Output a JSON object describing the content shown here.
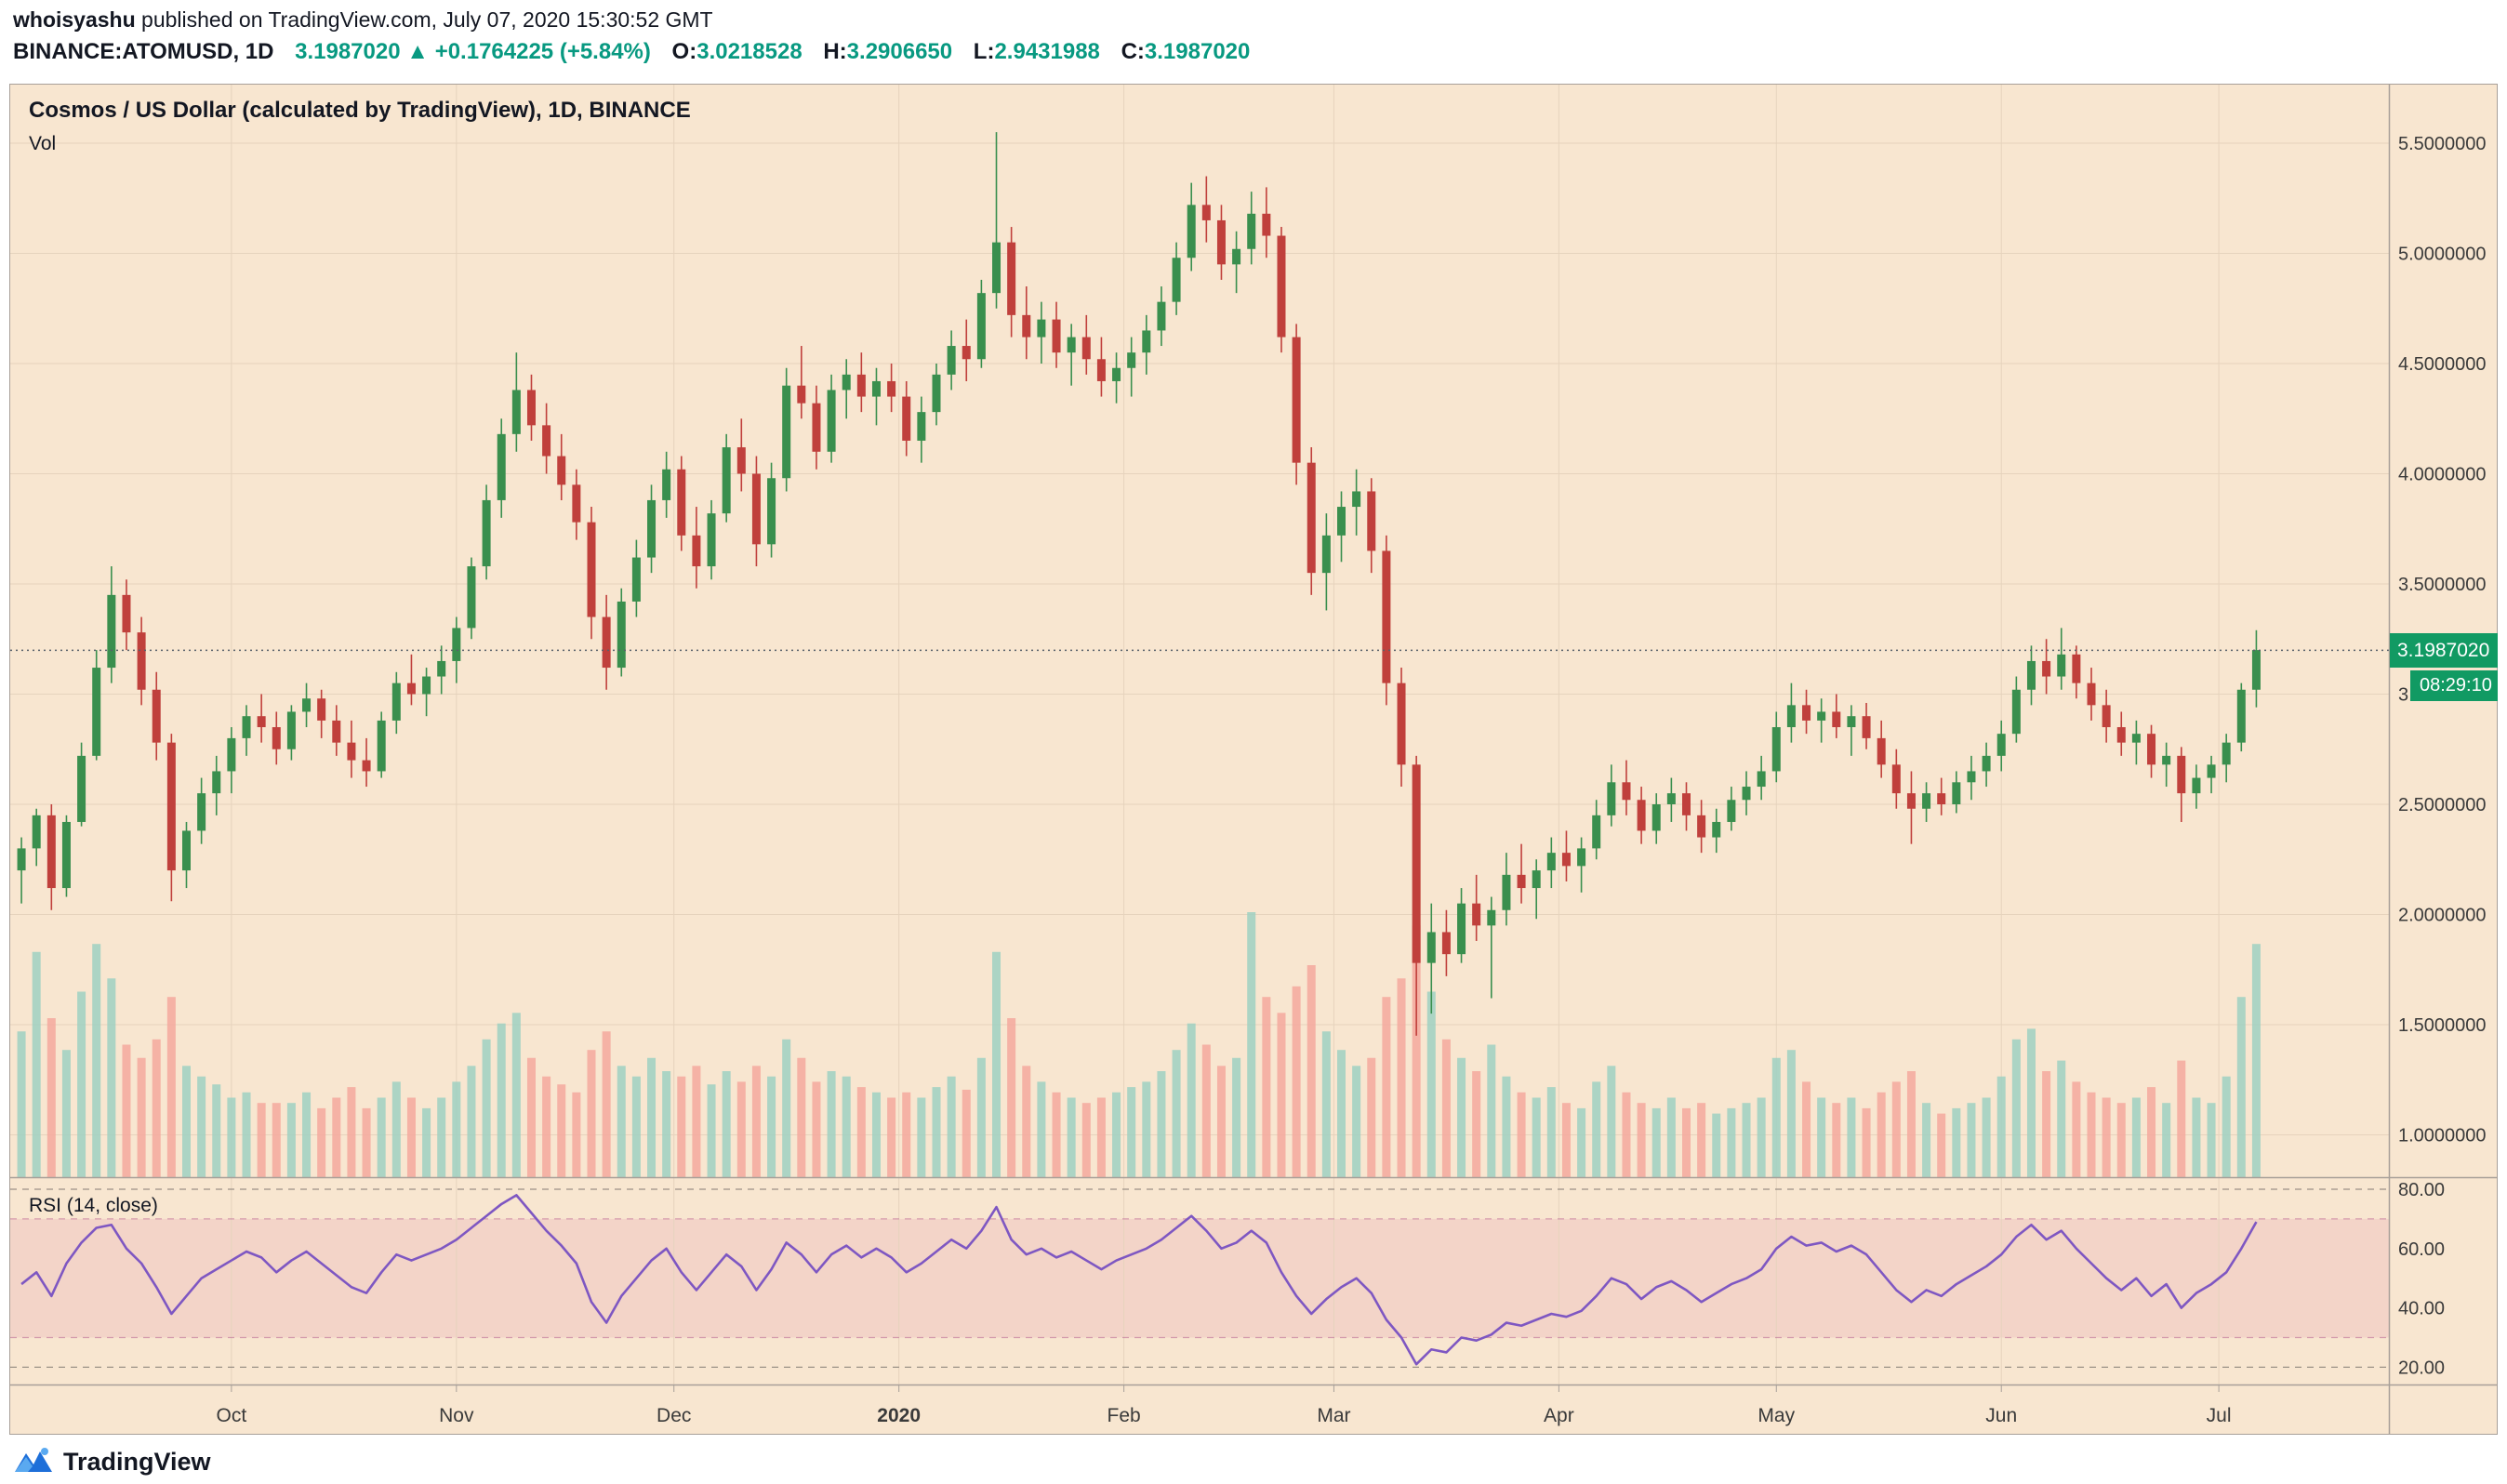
{
  "header": {
    "author": "whoisyashu",
    "byline": " published on TradingView.com, July 07, 2020 15:30:52 GMT"
  },
  "symbol_bar": {
    "symbol": "BINANCE:ATOMUSD, 1D",
    "last": "3.1987020",
    "arrow": "▲",
    "change": "+0.1764225 (+5.84%)",
    "o_label": "O:",
    "o": "3.0218528",
    "h_label": "H:",
    "h": "3.2906650",
    "l_label": "L:",
    "l": "2.9431988",
    "c_label": "C:",
    "c": "3.1987020"
  },
  "main": {
    "title": "Cosmos / US Dollar (calculated by TradingView), 1D, BINANCE",
    "vol_label": "Vol"
  },
  "rsi_pane": {
    "label": "RSI (14, close)"
  },
  "tags": {
    "price": "3.1987020",
    "countdown": "08:29:10"
  },
  "footer": {
    "brand": "TradingView"
  },
  "colors": {
    "bg": "#f8e6d0",
    "up": "#3a8f4e",
    "down": "#c0403c",
    "vol_up": "#9fd0c2",
    "vol_down": "#f4a89e",
    "rsi_line": "#7e57c2",
    "rsi_band_fill": "rgba(214,84,150,0.12)",
    "band_border": "rgba(190,110,150,0.6)",
    "grid": "#e6d3bd",
    "dashed": "#9b9186",
    "axis_text": "#3a3a3a",
    "separator": "#a8a099",
    "price_line": "#57606a",
    "tag_bg": "#119a63",
    "accent_teal": "#089981"
  },
  "chart_data": {
    "type": "candlestick+volume+rsi",
    "title": "Cosmos / US Dollar (calculated by TradingView), 1D, BINANCE",
    "symbol": "BINANCE:ATOMUSD",
    "interval": "1D",
    "current_price": 3.198702,
    "countdown": "08:29:10",
    "price_ticks": [
      5.5,
      5.0,
      4.5,
      4.0,
      3.5,
      3.0,
      2.5,
      2.0,
      1.5,
      1.0
    ],
    "rsi_ticks": [
      80,
      60,
      40,
      20
    ],
    "rsi_band": [
      30,
      70
    ],
    "x_ticks": [
      {
        "bar": 14,
        "label": "Oct",
        "bold": false
      },
      {
        "bar": 29,
        "label": "Nov",
        "bold": false
      },
      {
        "bar": 43.5,
        "label": "Dec",
        "bold": false
      },
      {
        "bar": 58.5,
        "label": "2020",
        "bold": true
      },
      {
        "bar": 73.5,
        "label": "Feb",
        "bold": false
      },
      {
        "bar": 87.5,
        "label": "Mar",
        "bold": false
      },
      {
        "bar": 102.5,
        "label": "Apr",
        "bold": false
      },
      {
        "bar": 117,
        "label": "May",
        "bold": false
      },
      {
        "bar": 132,
        "label": "Jun",
        "bold": false
      },
      {
        "bar": 146.5,
        "label": "Jul",
        "bold": false
      }
    ],
    "ohlc": [
      [
        2.2,
        2.35,
        2.05,
        2.3
      ],
      [
        2.3,
        2.48,
        2.22,
        2.45
      ],
      [
        2.45,
        2.5,
        2.02,
        2.12
      ],
      [
        2.12,
        2.45,
        2.08,
        2.42
      ],
      [
        2.42,
        2.78,
        2.4,
        2.72
      ],
      [
        2.72,
        3.2,
        2.7,
        3.12
      ],
      [
        3.12,
        3.58,
        3.05,
        3.45
      ],
      [
        3.45,
        3.52,
        3.2,
        3.28
      ],
      [
        3.28,
        3.35,
        2.95,
        3.02
      ],
      [
        3.02,
        3.1,
        2.7,
        2.78
      ],
      [
        2.78,
        2.82,
        2.06,
        2.2
      ],
      [
        2.2,
        2.42,
        2.12,
        2.38
      ],
      [
        2.38,
        2.62,
        2.32,
        2.55
      ],
      [
        2.55,
        2.72,
        2.45,
        2.65
      ],
      [
        2.65,
        2.85,
        2.55,
        2.8
      ],
      [
        2.8,
        2.95,
        2.72,
        2.9
      ],
      [
        2.9,
        3.0,
        2.78,
        2.85
      ],
      [
        2.85,
        2.92,
        2.68,
        2.75
      ],
      [
        2.75,
        2.95,
        2.7,
        2.92
      ],
      [
        2.92,
        3.05,
        2.85,
        2.98
      ],
      [
        2.98,
        3.02,
        2.8,
        2.88
      ],
      [
        2.88,
        2.95,
        2.72,
        2.78
      ],
      [
        2.78,
        2.88,
        2.62,
        2.7
      ],
      [
        2.7,
        2.8,
        2.58,
        2.65
      ],
      [
        2.65,
        2.92,
        2.62,
        2.88
      ],
      [
        2.88,
        3.1,
        2.82,
        3.05
      ],
      [
        3.05,
        3.18,
        2.95,
        3.0
      ],
      [
        3.0,
        3.12,
        2.9,
        3.08
      ],
      [
        3.08,
        3.22,
        3.0,
        3.15
      ],
      [
        3.15,
        3.35,
        3.05,
        3.3
      ],
      [
        3.3,
        3.62,
        3.25,
        3.58
      ],
      [
        3.58,
        3.95,
        3.52,
        3.88
      ],
      [
        3.88,
        4.25,
        3.8,
        4.18
      ],
      [
        4.18,
        4.55,
        4.1,
        4.38
      ],
      [
        4.38,
        4.45,
        4.15,
        4.22
      ],
      [
        4.22,
        4.32,
        4.0,
        4.08
      ],
      [
        4.08,
        4.18,
        3.88,
        3.95
      ],
      [
        3.95,
        4.02,
        3.7,
        3.78
      ],
      [
        3.78,
        3.85,
        3.25,
        3.35
      ],
      [
        3.35,
        3.45,
        3.02,
        3.12
      ],
      [
        3.12,
        3.48,
        3.08,
        3.42
      ],
      [
        3.42,
        3.7,
        3.35,
        3.62
      ],
      [
        3.62,
        3.95,
        3.55,
        3.88
      ],
      [
        3.88,
        4.1,
        3.8,
        4.02
      ],
      [
        4.02,
        4.08,
        3.65,
        3.72
      ],
      [
        3.72,
        3.85,
        3.48,
        3.58
      ],
      [
        3.58,
        3.88,
        3.52,
        3.82
      ],
      [
        3.82,
        4.18,
        3.78,
        4.12
      ],
      [
        4.12,
        4.25,
        3.92,
        4.0
      ],
      [
        4.0,
        4.08,
        3.58,
        3.68
      ],
      [
        3.68,
        4.05,
        3.62,
        3.98
      ],
      [
        3.98,
        4.48,
        3.92,
        4.4
      ],
      [
        4.4,
        4.58,
        4.25,
        4.32
      ],
      [
        4.32,
        4.4,
        4.02,
        4.1
      ],
      [
        4.1,
        4.45,
        4.05,
        4.38
      ],
      [
        4.38,
        4.52,
        4.25,
        4.45
      ],
      [
        4.45,
        4.55,
        4.28,
        4.35
      ],
      [
        4.35,
        4.48,
        4.22,
        4.42
      ],
      [
        4.42,
        4.5,
        4.28,
        4.35
      ],
      [
        4.35,
        4.42,
        4.08,
        4.15
      ],
      [
        4.15,
        4.35,
        4.05,
        4.28
      ],
      [
        4.28,
        4.5,
        4.22,
        4.45
      ],
      [
        4.45,
        4.65,
        4.38,
        4.58
      ],
      [
        4.58,
        4.7,
        4.42,
        4.52
      ],
      [
        4.52,
        4.88,
        4.48,
        4.82
      ],
      [
        4.82,
        5.55,
        4.75,
        5.05
      ],
      [
        5.05,
        5.12,
        4.62,
        4.72
      ],
      [
        4.72,
        4.85,
        4.52,
        4.62
      ],
      [
        4.62,
        4.78,
        4.5,
        4.7
      ],
      [
        4.7,
        4.78,
        4.48,
        4.55
      ],
      [
        4.55,
        4.68,
        4.4,
        4.62
      ],
      [
        4.62,
        4.72,
        4.45,
        4.52
      ],
      [
        4.52,
        4.62,
        4.35,
        4.42
      ],
      [
        4.42,
        4.55,
        4.32,
        4.48
      ],
      [
        4.48,
        4.62,
        4.35,
        4.55
      ],
      [
        4.55,
        4.72,
        4.45,
        4.65
      ],
      [
        4.65,
        4.85,
        4.58,
        4.78
      ],
      [
        4.78,
        5.05,
        4.72,
        4.98
      ],
      [
        4.98,
        5.32,
        4.92,
        5.22
      ],
      [
        5.22,
        5.35,
        5.05,
        5.15
      ],
      [
        5.15,
        5.22,
        4.88,
        4.95
      ],
      [
        4.95,
        5.1,
        4.82,
        5.02
      ],
      [
        5.02,
        5.28,
        4.95,
        5.18
      ],
      [
        5.18,
        5.3,
        4.98,
        5.08
      ],
      [
        5.08,
        5.12,
        4.55,
        4.62
      ],
      [
        4.62,
        4.68,
        3.95,
        4.05
      ],
      [
        4.05,
        4.12,
        3.45,
        3.55
      ],
      [
        3.55,
        3.82,
        3.38,
        3.72
      ],
      [
        3.72,
        3.92,
        3.6,
        3.85
      ],
      [
        3.85,
        4.02,
        3.72,
        3.92
      ],
      [
        3.92,
        3.98,
        3.55,
        3.65
      ],
      [
        3.65,
        3.72,
        2.95,
        3.05
      ],
      [
        3.05,
        3.12,
        2.58,
        2.68
      ],
      [
        2.68,
        2.72,
        1.45,
        1.78
      ],
      [
        1.78,
        2.05,
        1.55,
        1.92
      ],
      [
        1.92,
        2.02,
        1.72,
        1.82
      ],
      [
        1.82,
        2.12,
        1.78,
        2.05
      ],
      [
        2.05,
        2.18,
        1.88,
        1.95
      ],
      [
        1.95,
        2.08,
        1.62,
        2.02
      ],
      [
        2.02,
        2.28,
        1.95,
        2.18
      ],
      [
        2.18,
        2.32,
        2.05,
        2.12
      ],
      [
        2.12,
        2.25,
        1.98,
        2.2
      ],
      [
        2.2,
        2.35,
        2.12,
        2.28
      ],
      [
        2.28,
        2.38,
        2.15,
        2.22
      ],
      [
        2.22,
        2.35,
        2.1,
        2.3
      ],
      [
        2.3,
        2.52,
        2.25,
        2.45
      ],
      [
        2.45,
        2.68,
        2.4,
        2.6
      ],
      [
        2.6,
        2.7,
        2.45,
        2.52
      ],
      [
        2.52,
        2.58,
        2.32,
        2.38
      ],
      [
        2.38,
        2.55,
        2.32,
        2.5
      ],
      [
        2.5,
        2.62,
        2.42,
        2.55
      ],
      [
        2.55,
        2.6,
        2.38,
        2.45
      ],
      [
        2.45,
        2.52,
        2.28,
        2.35
      ],
      [
        2.35,
        2.48,
        2.28,
        2.42
      ],
      [
        2.42,
        2.58,
        2.38,
        2.52
      ],
      [
        2.52,
        2.65,
        2.45,
        2.58
      ],
      [
        2.58,
        2.72,
        2.52,
        2.65
      ],
      [
        2.65,
        2.92,
        2.6,
        2.85
      ],
      [
        2.85,
        3.05,
        2.78,
        2.95
      ],
      [
        2.95,
        3.02,
        2.82,
        2.88
      ],
      [
        2.88,
        2.98,
        2.78,
        2.92
      ],
      [
        2.92,
        3.0,
        2.8,
        2.85
      ],
      [
        2.85,
        2.95,
        2.72,
        2.9
      ],
      [
        2.9,
        2.96,
        2.75,
        2.8
      ],
      [
        2.8,
        2.88,
        2.62,
        2.68
      ],
      [
        2.68,
        2.75,
        2.48,
        2.55
      ],
      [
        2.55,
        2.65,
        2.32,
        2.48
      ],
      [
        2.48,
        2.6,
        2.42,
        2.55
      ],
      [
        2.55,
        2.62,
        2.45,
        2.5
      ],
      [
        2.5,
        2.65,
        2.46,
        2.6
      ],
      [
        2.6,
        2.72,
        2.52,
        2.65
      ],
      [
        2.65,
        2.78,
        2.58,
        2.72
      ],
      [
        2.72,
        2.88,
        2.65,
        2.82
      ],
      [
        2.82,
        3.08,
        2.78,
        3.02
      ],
      [
        3.02,
        3.22,
        2.95,
        3.15
      ],
      [
        3.15,
        3.25,
        3.0,
        3.08
      ],
      [
        3.08,
        3.3,
        3.02,
        3.18
      ],
      [
        3.18,
        3.22,
        2.98,
        3.05
      ],
      [
        3.05,
        3.12,
        2.88,
        2.95
      ],
      [
        2.95,
        3.02,
        2.78,
        2.85
      ],
      [
        2.85,
        2.92,
        2.72,
        2.78
      ],
      [
        2.78,
        2.88,
        2.68,
        2.82
      ],
      [
        2.82,
        2.86,
        2.62,
        2.68
      ],
      [
        2.68,
        2.78,
        2.58,
        2.72
      ],
      [
        2.72,
        2.76,
        2.42,
        2.55
      ],
      [
        2.55,
        2.68,
        2.48,
        2.62
      ],
      [
        2.62,
        2.72,
        2.55,
        2.68
      ],
      [
        2.68,
        2.82,
        2.6,
        2.78
      ],
      [
        2.78,
        3.05,
        2.74,
        3.02
      ],
      [
        3.02,
        3.29,
        2.94,
        3.2
      ]
    ],
    "volume": [
      55,
      85,
      60,
      48,
      70,
      88,
      75,
      50,
      45,
      52,
      68,
      42,
      38,
      35,
      30,
      32,
      28,
      28,
      28,
      32,
      26,
      30,
      34,
      26,
      30,
      36,
      30,
      26,
      30,
      36,
      42,
      52,
      58,
      62,
      45,
      38,
      35,
      32,
      48,
      55,
      42,
      38,
      45,
      40,
      38,
      42,
      35,
      40,
      36,
      42,
      38,
      52,
      45,
      36,
      40,
      38,
      34,
      32,
      30,
      32,
      30,
      34,
      38,
      33,
      45,
      85,
      60,
      42,
      36,
      32,
      30,
      28,
      30,
      32,
      34,
      36,
      40,
      48,
      58,
      50,
      42,
      45,
      100,
      68,
      62,
      72,
      80,
      55,
      48,
      42,
      45,
      68,
      75,
      95,
      70,
      52,
      45,
      40,
      50,
      38,
      32,
      30,
      34,
      28,
      26,
      36,
      42,
      32,
      28,
      26,
      30,
      26,
      28,
      24,
      26,
      28,
      30,
      45,
      48,
      36,
      30,
      28,
      30,
      26,
      32,
      36,
      40,
      28,
      24,
      26,
      28,
      30,
      38,
      52,
      56,
      40,
      44,
      36,
      32,
      30,
      28,
      30,
      34,
      28,
      44,
      30,
      28,
      38,
      68,
      88
    ],
    "rsi": [
      48,
      52,
      44,
      55,
      62,
      67,
      68,
      60,
      55,
      47,
      38,
      44,
      50,
      53,
      56,
      59,
      57,
      52,
      56,
      59,
      55,
      51,
      47,
      45,
      52,
      58,
      56,
      58,
      60,
      63,
      67,
      71,
      75,
      78,
      72,
      66,
      61,
      55,
      42,
      35,
      44,
      50,
      56,
      60,
      52,
      46,
      52,
      58,
      54,
      46,
      53,
      62,
      58,
      52,
      58,
      61,
      57,
      60,
      57,
      52,
      55,
      59,
      63,
      60,
      66,
      74,
      63,
      58,
      60,
      57,
      59,
      56,
      53,
      56,
      58,
      60,
      63,
      67,
      71,
      66,
      60,
      62,
      66,
      62,
      52,
      44,
      38,
      43,
      47,
      50,
      45,
      36,
      30,
      21,
      26,
      25,
      30,
      29,
      31,
      35,
      34,
      36,
      38,
      37,
      39,
      44,
      50,
      48,
      43,
      47,
      49,
      46,
      42,
      45,
      48,
      50,
      53,
      60,
      64,
      61,
      62,
      59,
      61,
      58,
      52,
      46,
      42,
      46,
      44,
      48,
      51,
      54,
      58,
      64,
      68,
      63,
      66,
      60,
      55,
      50,
      46,
      50,
      44,
      48,
      40,
      45,
      48,
      52,
      60,
      69
    ]
  }
}
